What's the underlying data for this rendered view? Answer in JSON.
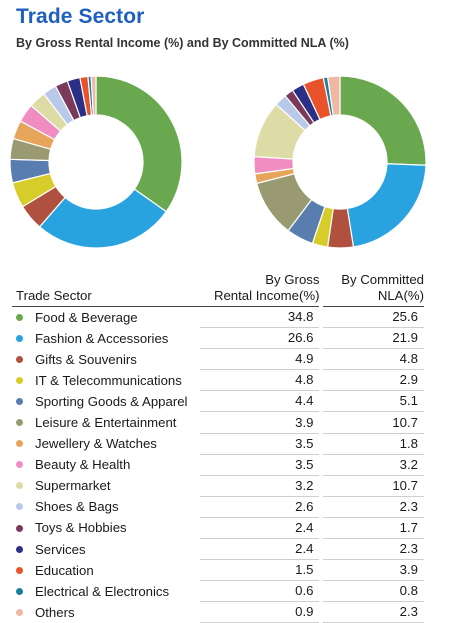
{
  "title": "Trade Sector",
  "subtitle": "By Gross Rental Income (%) and By Committed NLA (%)",
  "table": {
    "col_sector": "Trade Sector",
    "col_gri": "By Gross\nRental Income(%)",
    "col_nla": "By Committed\nNLA(%)"
  },
  "chart_data": [
    {
      "type": "pie",
      "variant": "donut",
      "series_key": "gross_rental_income",
      "categories": [
        "Food & Beverage",
        "Fashion & Accessories",
        "Gifts & Souvenirs",
        "IT & Telecommunications",
        "Sporting Goods & Apparel",
        "Leisure & Entertainment",
        "Jewellery & Watches",
        "Beauty & Health",
        "Supermarket",
        "Shoes & Bags",
        "Toys & Hobbies",
        "Services",
        "Education",
        "Electrical & Electronics",
        "Others"
      ],
      "values": [
        34.8,
        26.6,
        4.9,
        4.8,
        4.4,
        3.9,
        3.5,
        3.5,
        3.2,
        2.6,
        2.4,
        2.4,
        1.5,
        0.6,
        0.9
      ],
      "colors": [
        "#6aa84f",
        "#29a3e0",
        "#b0503f",
        "#d6cd2a",
        "#5a7db0",
        "#9a9a72",
        "#e6a55a",
        "#f08dc0",
        "#dedca6",
        "#b9c9ea",
        "#7a3a5c",
        "#2b2f86",
        "#e8532b",
        "#1b7e9c",
        "#efb8a2"
      ]
    },
    {
      "type": "pie",
      "variant": "donut",
      "series_key": "committed_nla",
      "categories": [
        "Food & Beverage",
        "Fashion & Accessories",
        "Gifts & Souvenirs",
        "IT & Telecommunications",
        "Sporting Goods & Apparel",
        "Leisure & Entertainment",
        "Jewellery & Watches",
        "Beauty & Health",
        "Supermarket",
        "Shoes & Bags",
        "Toys & Hobbies",
        "Services",
        "Education",
        "Electrical & Electronics",
        "Others"
      ],
      "values": [
        25.6,
        21.9,
        4.8,
        2.9,
        5.1,
        10.7,
        1.8,
        3.2,
        10.7,
        2.3,
        1.7,
        2.3,
        3.9,
        0.8,
        2.3
      ],
      "colors": [
        "#6aa84f",
        "#29a3e0",
        "#b0503f",
        "#d6cd2a",
        "#5a7db0",
        "#9a9a72",
        "#e6a55a",
        "#f08dc0",
        "#dedca6",
        "#b9c9ea",
        "#7a3a5c",
        "#2b2f86",
        "#e8532b",
        "#1b7e9c",
        "#efb8a2"
      ]
    }
  ],
  "rows": [
    {
      "name": "Food & Beverage",
      "gri": "34.8",
      "nla": "25.6",
      "color": "#6aa84f"
    },
    {
      "name": "Fashion & Accessories",
      "gri": "26.6",
      "nla": "21.9",
      "color": "#29a3e0"
    },
    {
      "name": "Gifts & Souvenirs",
      "gri": "4.9",
      "nla": "4.8",
      "color": "#b0503f"
    },
    {
      "name": "IT & Telecommunications",
      "gri": "4.8",
      "nla": "2.9",
      "color": "#d6cd2a"
    },
    {
      "name": "Sporting Goods & Apparel",
      "gri": "4.4",
      "nla": "5.1",
      "color": "#5a7db0"
    },
    {
      "name": "Leisure & Entertainment",
      "gri": "3.9",
      "nla": "10.7",
      "color": "#9a9a72"
    },
    {
      "name": "Jewellery & Watches",
      "gri": "3.5",
      "nla": "1.8",
      "color": "#e6a55a"
    },
    {
      "name": "Beauty & Health",
      "gri": "3.5",
      "nla": "3.2",
      "color": "#f08dc0"
    },
    {
      "name": "Supermarket",
      "gri": "3.2",
      "nla": "10.7",
      "color": "#dedca6"
    },
    {
      "name": "Shoes & Bags",
      "gri": "2.6",
      "nla": "2.3",
      "color": "#b9c9ea"
    },
    {
      "name": "Toys & Hobbies",
      "gri": "2.4",
      "nla": "1.7",
      "color": "#7a3a5c"
    },
    {
      "name": "Services",
      "gri": "2.4",
      "nla": "2.3",
      "color": "#2b2f86"
    },
    {
      "name": "Education",
      "gri": "1.5",
      "nla": "3.9",
      "color": "#e8532b"
    },
    {
      "name": "Electrical & Electronics",
      "gri": "0.6",
      "nla": "0.8",
      "color": "#1b7e9c"
    },
    {
      "name": "Others",
      "gri": "0.9",
      "nla": "2.3",
      "color": "#efb8a2"
    }
  ]
}
